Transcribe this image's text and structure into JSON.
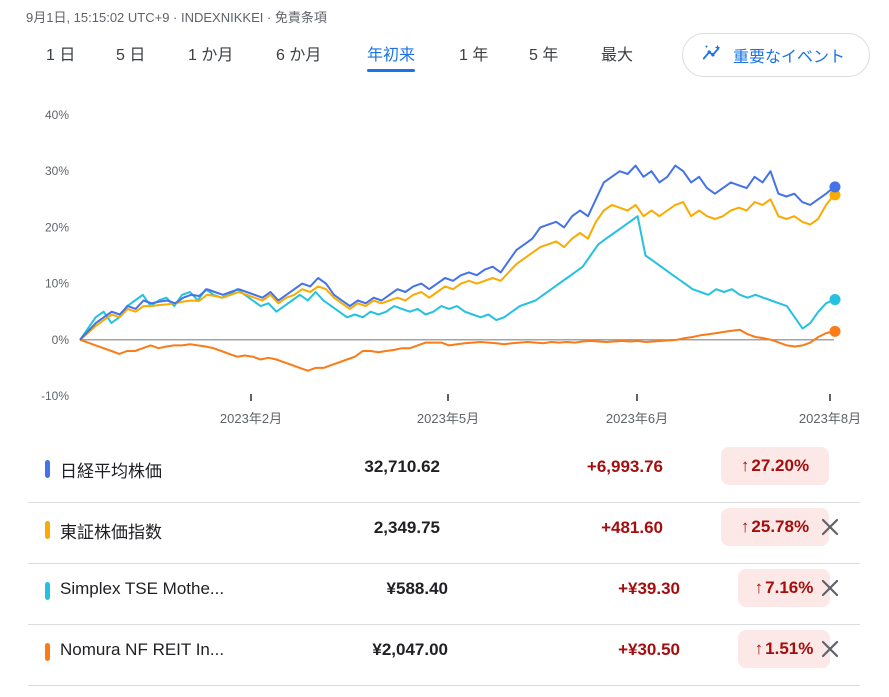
{
  "header": {
    "meta": "9月1日, 15:15:02 UTC+9 · INDEXNIKKEI · 免責条項"
  },
  "range_tabs": [
    {
      "label": "1 日"
    },
    {
      "label": "5 日"
    },
    {
      "label": "1 か月"
    },
    {
      "label": "6 か月"
    },
    {
      "label": "年初来",
      "active": true
    },
    {
      "label": "1 年"
    },
    {
      "label": "5 年"
    },
    {
      "label": "最大"
    }
  ],
  "events_button": {
    "label": "重要なイベント",
    "icon": "insights-icon"
  },
  "chart_data": {
    "type": "line",
    "y_ticks": [
      "40%",
      "30%",
      "20%",
      "10%",
      "0%",
      "-10%"
    ],
    "ylim": [
      -10,
      40
    ],
    "x_tick_labels": [
      "2023年2月",
      "2023年5月",
      "2023年6月",
      "2023年8月"
    ],
    "x_tick_positions": [
      0.227,
      0.492,
      0.734,
      1.0
    ],
    "baseline": 0,
    "series": [
      {
        "name": "日経平均株価",
        "color": "#4472e8",
        "values": [
          0,
          1.5,
          3,
          4,
          5,
          4.5,
          6,
          5.5,
          7,
          6.5,
          6.8,
          7,
          6.5,
          7.5,
          8,
          7.8,
          9,
          8.5,
          8,
          8.5,
          9,
          8.5,
          8,
          7.5,
          8.5,
          7,
          8,
          9,
          10,
          9.5,
          11,
          10,
          8,
          7,
          6,
          7,
          6.5,
          7.5,
          7,
          8,
          9,
          8.5,
          9.5,
          10,
          9,
          10,
          11,
          10.5,
          11.5,
          12,
          11.5,
          12.5,
          13,
          12,
          14,
          16,
          17,
          18,
          20,
          20.5,
          21,
          20,
          22,
          23,
          22,
          25,
          28,
          29,
          30,
          29.5,
          31,
          29,
          30,
          28,
          29,
          31,
          30,
          28,
          29,
          27,
          26,
          27,
          28,
          27.5,
          27,
          29,
          28,
          30,
          26,
          25.5,
          26,
          24.5,
          24,
          25,
          26,
          27.2
        ]
      },
      {
        "name": "東証株価指数",
        "color": "#f9ab00",
        "values": [
          0,
          1.2,
          2.5,
          3.5,
          4.5,
          4,
          5.5,
          5,
          6,
          6,
          6.2,
          6.3,
          6.5,
          6.8,
          7,
          6.9,
          8,
          7.8,
          7.5,
          8,
          8.5,
          8,
          7.5,
          7,
          8,
          6.5,
          7.5,
          8,
          9,
          8.5,
          9.5,
          9,
          7.5,
          6.5,
          5.5,
          6.5,
          6,
          7,
          6.5,
          7,
          7.5,
          7,
          8,
          8.5,
          7.5,
          8.5,
          9.5,
          9,
          10,
          10.5,
          10,
          10.5,
          11,
          10.5,
          12,
          13.5,
          14.5,
          15.5,
          16.5,
          17,
          17.5,
          16.5,
          18,
          19,
          18,
          21,
          23,
          24,
          23.5,
          23,
          24,
          22,
          23,
          22,
          23,
          24,
          24.5,
          22,
          23,
          22,
          21.5,
          22,
          23,
          23.5,
          23,
          24.5,
          24,
          25,
          22,
          21.5,
          22,
          21,
          20.5,
          21.5,
          24,
          25.78
        ]
      },
      {
        "name": "Simplex TSE Mothe...",
        "color": "#24c1e0",
        "values": [
          0,
          2,
          4,
          5,
          3,
          4,
          6,
          7,
          8,
          6,
          7,
          7.5,
          6,
          8,
          8.5,
          7,
          9,
          8,
          7.5,
          8,
          9,
          8,
          7,
          6,
          6.5,
          5,
          6,
          7,
          8,
          7,
          8.5,
          7,
          6,
          5,
          4,
          4.5,
          4,
          5,
          4.5,
          5,
          6,
          5.5,
          5,
          5.5,
          4.5,
          5,
          6,
          5.5,
          6,
          5,
          4.5,
          4,
          4.5,
          3.5,
          4,
          5,
          6,
          6.5,
          7,
          8,
          9,
          10,
          11,
          12,
          13,
          15,
          17,
          18,
          19,
          20,
          21,
          22,
          15,
          14,
          13,
          12,
          11,
          10,
          9,
          8.5,
          8,
          9,
          8.5,
          9,
          8,
          7.5,
          8,
          7.5,
          7,
          6.5,
          6,
          4,
          2,
          3,
          5,
          6.5,
          7.16
        ]
      },
      {
        "name": "Nomura NF REIT In...",
        "color": "#fa7b17",
        "values": [
          0,
          -0.5,
          -1,
          -1.5,
          -2,
          -2.5,
          -2,
          -2,
          -1.5,
          -1,
          -1.5,
          -1.2,
          -1,
          -1,
          -0.8,
          -1,
          -1.2,
          -1.5,
          -2,
          -2.5,
          -3,
          -2.8,
          -3,
          -3.5,
          -3.2,
          -3.5,
          -4,
          -4.5,
          -5,
          -5.5,
          -5,
          -5,
          -4.5,
          -4,
          -3.5,
          -3,
          -2,
          -2,
          -2.2,
          -2,
          -1.8,
          -1.5,
          -1.5,
          -1,
          -0.5,
          -0.5,
          -0.5,
          -1,
          -0.8,
          -0.6,
          -0.5,
          -0.4,
          -0.5,
          -0.6,
          -0.8,
          -0.6,
          -0.5,
          -0.4,
          -0.5,
          -0.6,
          -0.4,
          -0.5,
          -0.4,
          -0.5,
          -0.3,
          -0.2,
          -0.3,
          -0.4,
          -0.3,
          -0.2,
          -0.3,
          -0.2,
          -0.4,
          -0.3,
          -0.2,
          -0.1,
          0,
          0.3,
          0.5,
          0.8,
          1,
          1.2,
          1.4,
          1.6,
          1.8,
          1,
          0.5,
          0.3,
          0,
          -0.5,
          -1,
          -1.2,
          -1,
          -0.5,
          0.5,
          1.2,
          1.51
        ]
      }
    ]
  },
  "holdings": [
    {
      "name": "日経平均株価",
      "color": "#4472e8",
      "price": "32,710.62",
      "change": "+6,993.76",
      "pct": "27.20%",
      "removable": false
    },
    {
      "name": "東証株価指数",
      "color": "#f9ab00",
      "price": "2,349.75",
      "change": "+481.60",
      "pct": "25.78%",
      "removable": true
    },
    {
      "name": "Simplex TSE Mothe...",
      "color": "#24c1e0",
      "price": "¥588.40",
      "change": "+¥39.30",
      "pct": "7.16%",
      "removable": true
    },
    {
      "name": "Nomura NF REIT In...",
      "color": "#fa7b17",
      "price": "¥2,047.00",
      "change": "+¥30.50",
      "pct": "1.51%",
      "removable": true
    }
  ]
}
